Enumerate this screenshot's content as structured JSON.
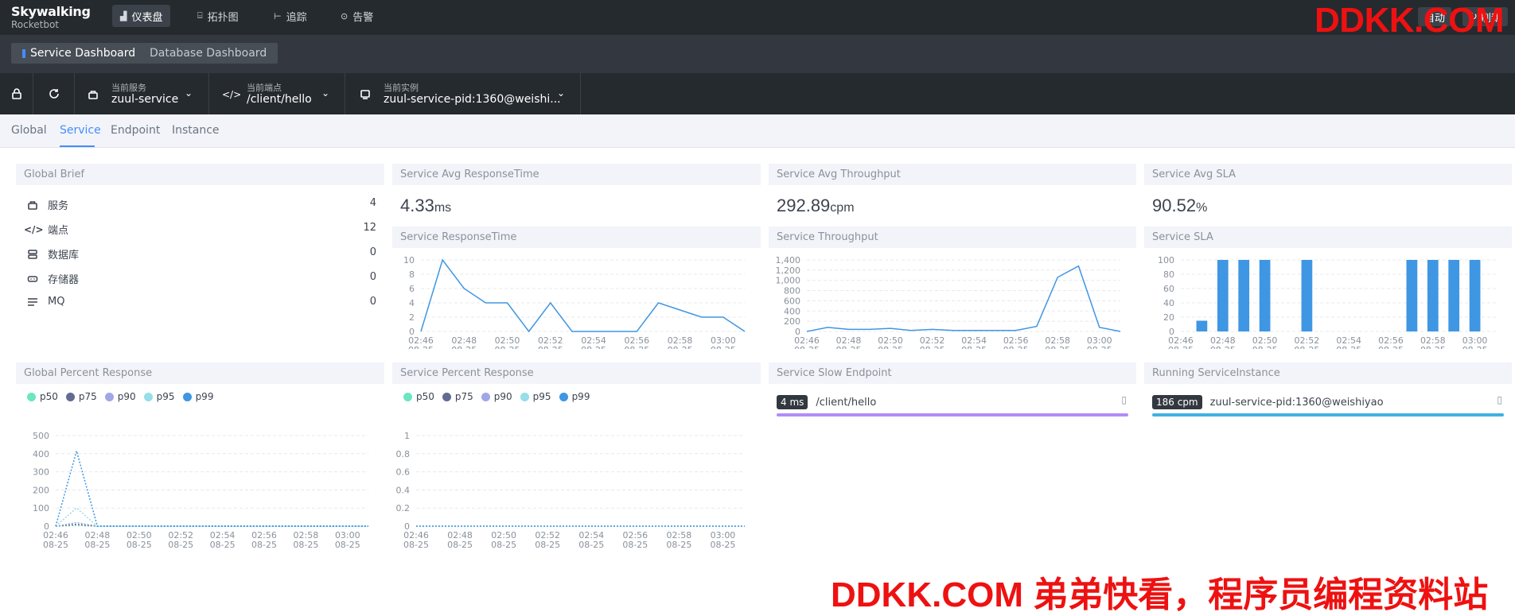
{
  "app": {
    "logo_line1": "Skywalking",
    "logo_line2": "Rocketbot"
  },
  "topnav": [
    {
      "label": "仪表盘",
      "icon": "chart-icon",
      "active": true
    },
    {
      "label": "拓扑图",
      "icon": "topology-icon",
      "active": false
    },
    {
      "label": "追踪",
      "icon": "trace-icon",
      "active": false
    },
    {
      "label": "告警",
      "icon": "alert-icon",
      "active": false
    }
  ],
  "top_right": {
    "auto_label": "自动",
    "refresh_label": "刷新"
  },
  "watermark": {
    "top": "DDKK.COM",
    "bottom": "DDKK.COM 弟弟快看，程序员编程资料站"
  },
  "dashboards": {
    "service": "Service Dashboard",
    "database": "Database Dashboard"
  },
  "selectors": {
    "service": {
      "label": "当前服务",
      "value": "zuul-service"
    },
    "endpoint": {
      "label": "当前端点",
      "value": "/client/hello"
    },
    "instance": {
      "label": "当前实例",
      "value": "zuul-service-pid:1360@weishi..."
    }
  },
  "tabs": [
    "Global",
    "Service",
    "Endpoint",
    "Instance"
  ],
  "active_tab": "Service",
  "global_brief": {
    "title": "Global Brief",
    "rows": [
      {
        "label": "服务",
        "value": "4",
        "icon": "service-icon"
      },
      {
        "label": "端点",
        "value": "12",
        "icon": "code-icon"
      },
      {
        "label": "数据库",
        "value": "0",
        "icon": "database-icon"
      },
      {
        "label": "存储器",
        "value": "0",
        "icon": "cache-icon"
      },
      {
        "label": "MQ",
        "value": "0",
        "icon": "mq-icon"
      }
    ]
  },
  "avg_response": {
    "title": "Service Avg ResponseTime",
    "value": "4.33",
    "unit": "ms"
  },
  "avg_throughput": {
    "title": "Service Avg Throughput",
    "value": "292.89",
    "unit": "cpm"
  },
  "avg_sla": {
    "title": "Service Avg SLA",
    "value": "90.52",
    "unit": "%"
  },
  "time_labels": [
    "02:46",
    "02:48",
    "02:50",
    "02:52",
    "02:54",
    "02:56",
    "02:58",
    "03:00"
  ],
  "date_label": "08-25",
  "charts": {
    "response_time": {
      "title": "Service ResponseTime"
    },
    "throughput": {
      "title": "Service Throughput"
    },
    "sla": {
      "title": "Service SLA"
    },
    "global_percentile": {
      "title": "Global Percent Response"
    },
    "service_percentile": {
      "title": "Service Percent Response"
    }
  },
  "legend": [
    {
      "name": "p50",
      "color": "#6be6c1"
    },
    {
      "name": "p75",
      "color": "#626c91"
    },
    {
      "name": "p90",
      "color": "#a0a7e6"
    },
    {
      "name": "p95",
      "color": "#96dee8"
    },
    {
      "name": "p99",
      "color": "#3f96e3"
    }
  ],
  "slow_endpoint": {
    "title": "Service Slow Endpoint",
    "badge": "4 ms",
    "name": "/client/hello",
    "bar_color": "#b18df7"
  },
  "running_instance": {
    "title": "Running ServiceInstance",
    "badge": "186 cpm",
    "name": "zuul-service-pid:1360@weishiyao",
    "bar_color": "#3fb1e3"
  },
  "chart_data": [
    {
      "type": "line",
      "title": "Service ResponseTime",
      "x": [
        "02:46",
        "02:47",
        "02:48",
        "02:49",
        "02:50",
        "02:51",
        "02:52",
        "02:53",
        "02:54",
        "02:55",
        "02:56",
        "02:57",
        "02:58",
        "02:59",
        "03:00",
        "03:01"
      ],
      "values": [
        0,
        10,
        6,
        4,
        4,
        0,
        4,
        0,
        0,
        0,
        0,
        4,
        3,
        2,
        2,
        0
      ],
      "ylim": [
        0,
        10
      ],
      "yticks": [
        0,
        2,
        4,
        6,
        8,
        10
      ],
      "color": "#3f96e3"
    },
    {
      "type": "line",
      "title": "Service Throughput",
      "x": [
        "02:46",
        "02:47",
        "02:48",
        "02:49",
        "02:50",
        "02:51",
        "02:52",
        "02:53",
        "02:54",
        "02:55",
        "02:56",
        "02:57",
        "02:58",
        "02:59",
        "03:00",
        "03:01"
      ],
      "values": [
        0,
        80,
        40,
        40,
        60,
        20,
        40,
        20,
        20,
        20,
        20,
        100,
        1060,
        1280,
        80,
        0
      ],
      "ylim": [
        0,
        1400
      ],
      "yticks": [
        0,
        200,
        400,
        600,
        800,
        1000,
        1200,
        1400
      ],
      "color": "#3f96e3"
    },
    {
      "type": "bar",
      "title": "Service SLA",
      "x": [
        "02:46",
        "02:47",
        "02:48",
        "02:49",
        "02:50",
        "02:51",
        "02:52",
        "02:53",
        "02:54",
        "02:55",
        "02:56",
        "02:57",
        "02:58",
        "02:59",
        "03:00",
        "03:01"
      ],
      "values": [
        0,
        15,
        100,
        100,
        100,
        0,
        100,
        0,
        0,
        0,
        0,
        100,
        100,
        100,
        100,
        0
      ],
      "ylim": [
        0,
        100
      ],
      "yticks": [
        0,
        20,
        40,
        60,
        80,
        100
      ],
      "color": "#3f96e3"
    },
    {
      "type": "line",
      "title": "Global Percent Response",
      "x": [
        "02:46",
        "02:47",
        "02:48",
        "02:49",
        "02:50",
        "02:51",
        "02:52",
        "02:53",
        "02:54",
        "02:55",
        "02:56",
        "02:57",
        "02:58",
        "02:59",
        "03:00",
        "03:01"
      ],
      "series": [
        {
          "name": "p50",
          "values": [
            0,
            5,
            0,
            0,
            0,
            0,
            0,
            0,
            0,
            0,
            0,
            0,
            0,
            0,
            0,
            0
          ]
        },
        {
          "name": "p75",
          "values": [
            0,
            10,
            0,
            0,
            0,
            0,
            0,
            0,
            0,
            0,
            0,
            0,
            0,
            0,
            0,
            0
          ]
        },
        {
          "name": "p90",
          "values": [
            0,
            20,
            0,
            0,
            0,
            0,
            0,
            0,
            0,
            0,
            0,
            0,
            0,
            0,
            0,
            0
          ]
        },
        {
          "name": "p95",
          "values": [
            0,
            100,
            0,
            0,
            0,
            0,
            0,
            0,
            0,
            0,
            0,
            0,
            0,
            0,
            0,
            0
          ]
        },
        {
          "name": "p99",
          "values": [
            0,
            415,
            0,
            0,
            0,
            0,
            0,
            0,
            0,
            0,
            0,
            0,
            0,
            0,
            0,
            0
          ]
        }
      ],
      "ylim": [
        0,
        500
      ],
      "yticks": [
        0,
        100,
        200,
        300,
        400,
        500
      ]
    },
    {
      "type": "line",
      "title": "Service Percent Response",
      "x": [
        "02:46",
        "02:47",
        "02:48",
        "02:49",
        "02:50",
        "02:51",
        "02:52",
        "02:53",
        "02:54",
        "02:55",
        "02:56",
        "02:57",
        "02:58",
        "02:59",
        "03:00",
        "03:01"
      ],
      "series": [
        {
          "name": "p50",
          "values": [
            0,
            0,
            0,
            0,
            0,
            0,
            0,
            0,
            0,
            0,
            0,
            0,
            0,
            0,
            0,
            0
          ]
        },
        {
          "name": "p99",
          "values": [
            0,
            0,
            0,
            0,
            0,
            0,
            0,
            0,
            0,
            0,
            0,
            0,
            0,
            0,
            0,
            0
          ]
        }
      ],
      "ylim": [
        0,
        1
      ],
      "yticks": [
        0,
        0.2,
        0.4,
        0.6,
        0.8,
        1
      ]
    }
  ]
}
